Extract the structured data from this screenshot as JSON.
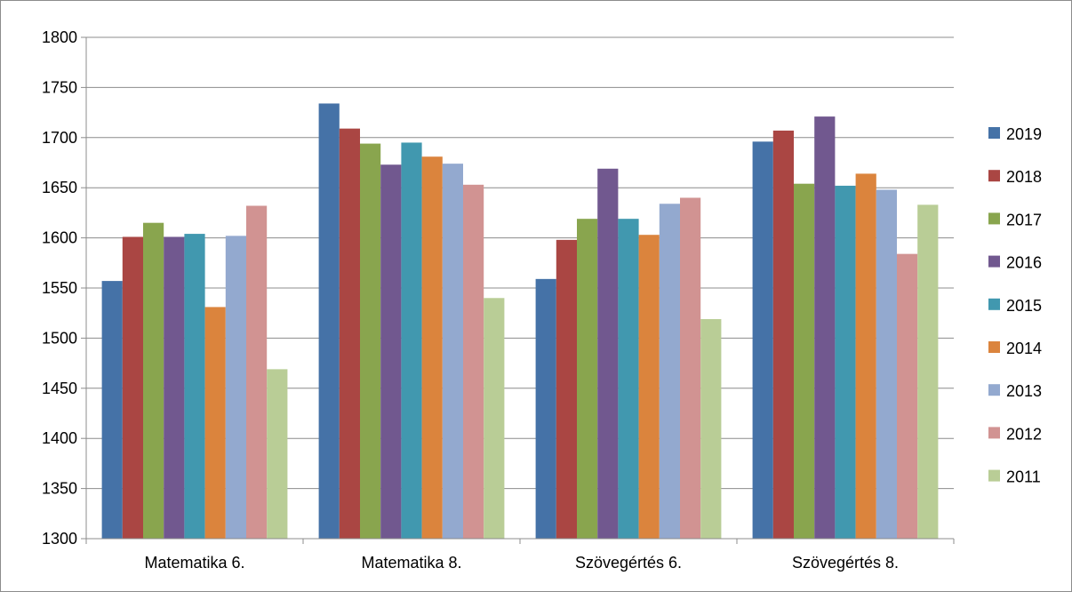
{
  "chart_data": {
    "type": "bar",
    "categories": [
      "Matematika 6.",
      "Matematika 8.",
      "Szövegértés 6.",
      "Szövegértés 8."
    ],
    "ylim": [
      1300,
      1800
    ],
    "yticks": [
      1300,
      1350,
      1400,
      1450,
      1500,
      1550,
      1600,
      1650,
      1700,
      1750,
      1800
    ],
    "grid": true,
    "legend_position": "right",
    "series": [
      {
        "name": "2019",
        "color": "#4572A7",
        "values": [
          1557,
          1734,
          1559,
          1696
        ]
      },
      {
        "name": "2018",
        "color": "#AA4643",
        "values": [
          1601,
          1709,
          1598,
          1707
        ]
      },
      {
        "name": "2017",
        "color": "#89A54E",
        "values": [
          1615,
          1694,
          1619,
          1654
        ]
      },
      {
        "name": "2016",
        "color": "#71588F",
        "values": [
          1601,
          1673,
          1669,
          1721
        ]
      },
      {
        "name": "2015",
        "color": "#4198AF",
        "values": [
          1604,
          1695,
          1619,
          1652
        ]
      },
      {
        "name": "2014",
        "color": "#DB843D",
        "values": [
          1531,
          1681,
          1603,
          1664
        ]
      },
      {
        "name": "2013",
        "color": "#93A9CF",
        "values": [
          1602,
          1674,
          1634,
          1648
        ]
      },
      {
        "name": "2012",
        "color": "#D19392",
        "values": [
          1632,
          1653,
          1640,
          1584
        ]
      },
      {
        "name": "2011",
        "color": "#B9CD96",
        "values": [
          1469,
          1540,
          1519,
          1633
        ]
      }
    ]
  }
}
